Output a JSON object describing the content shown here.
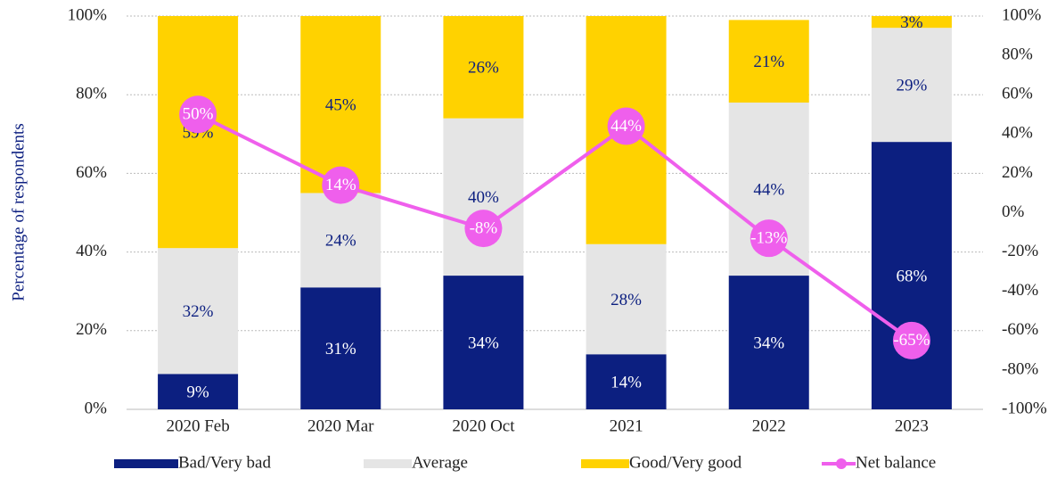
{
  "chart_data": {
    "type": "stacked_bar_line",
    "y_label": "Percentage of respondents",
    "categories": [
      "2020 Feb",
      "2020 Mar",
      "2020 Oct",
      "2021",
      "2022",
      "2023"
    ],
    "series": [
      {
        "name": "Bad/Very bad",
        "color": "#0c1f80",
        "values": [
          9,
          31,
          34,
          14,
          34,
          68
        ],
        "value_labels": [
          "9%",
          "31%",
          "34%",
          "14%",
          "34%",
          "68%"
        ]
      },
      {
        "name": "Average",
        "color": "#e5e5e5",
        "values": [
          32,
          24,
          40,
          28,
          44,
          29
        ],
        "value_labels": [
          "32%",
          "24%",
          "40%",
          "28%",
          "44%",
          "29%"
        ]
      },
      {
        "name": "Good/Very good",
        "color": "#ffd200",
        "values": [
          59,
          45,
          26,
          58,
          21,
          3
        ],
        "value_labels": [
          "59%",
          "45%",
          "26%",
          "58%",
          "21%",
          "3%"
        ]
      },
      {
        "name": "Net balance",
        "color": "#ef5fec",
        "axis": "y2",
        "type": "line",
        "values": [
          50,
          14,
          -8,
          44,
          -13,
          -65
        ],
        "value_labels": [
          "50%",
          "14%",
          "-8%",
          "44%",
          "-13%",
          "-65%"
        ]
      }
    ],
    "ylim": [
      0,
      100
    ],
    "yticks": [
      {
        "value": 0,
        "label": "0%"
      },
      {
        "value": 20,
        "label": "20%"
      },
      {
        "value": 40,
        "label": "40%"
      },
      {
        "value": 60,
        "label": "60%"
      },
      {
        "value": 80,
        "label": "80%"
      },
      {
        "value": 100,
        "label": "100%"
      }
    ],
    "y2lim": [
      -100,
      100
    ],
    "y2ticks": [
      {
        "value": -100,
        "label": "-100%"
      },
      {
        "value": -80,
        "label": "-80%"
      },
      {
        "value": -60,
        "label": "-60%"
      },
      {
        "value": -40,
        "label": "-40%"
      },
      {
        "value": -20,
        "label": "-20%"
      },
      {
        "value": 0,
        "label": "0%"
      },
      {
        "value": 20,
        "label": "20%"
      },
      {
        "value": 40,
        "label": "40%"
      },
      {
        "value": 60,
        "label": "60%"
      },
      {
        "value": 80,
        "label": "80%"
      },
      {
        "value": 100,
        "label": "100%"
      }
    ],
    "grid": true,
    "legend": "bottom"
  }
}
